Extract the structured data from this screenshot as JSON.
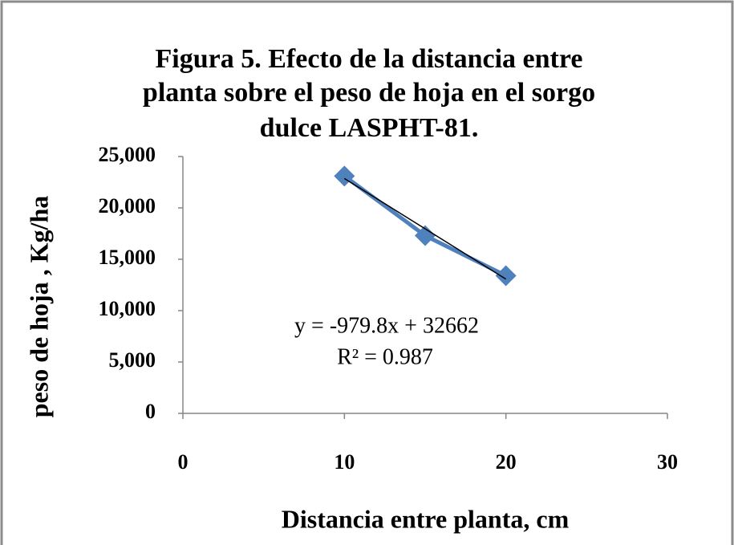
{
  "chart_data": {
    "type": "line",
    "title": [
      "Figura 5.  Efecto de la distancia entre",
      "planta sobre el peso de hoja en el sorgo",
      "dulce LASPHT-81."
    ],
    "x_label": "Distancia entre planta, cm",
    "y_label": "peso de hoja , Kg/ha",
    "x": [
      10,
      15,
      20
    ],
    "series": [
      {
        "color": "#4f81bd",
        "values": [
          23100,
          17300,
          13400
        ]
      }
    ],
    "trendline": {
      "color": "#000000",
      "x": [
        10,
        20
      ],
      "values": [
        22864,
        13066
      ]
    },
    "annotations": [
      "y = -979.8x + 32662",
      "R² = 0.987"
    ],
    "xlim": [
      0,
      30
    ],
    "xticks": [
      0,
      10,
      20,
      30
    ],
    "ylim": [
      0,
      25000
    ],
    "yticks": [
      0,
      {
        "value": 5000,
        "label": "5,000"
      },
      {
        "value": 10000,
        "label": "10,000"
      },
      {
        "value": 15000,
        "label": "15,000"
      },
      {
        "value": 20000,
        "label": "20,000"
      },
      {
        "value": 25000,
        "label": "25,000"
      }
    ],
    "grid": false
  }
}
